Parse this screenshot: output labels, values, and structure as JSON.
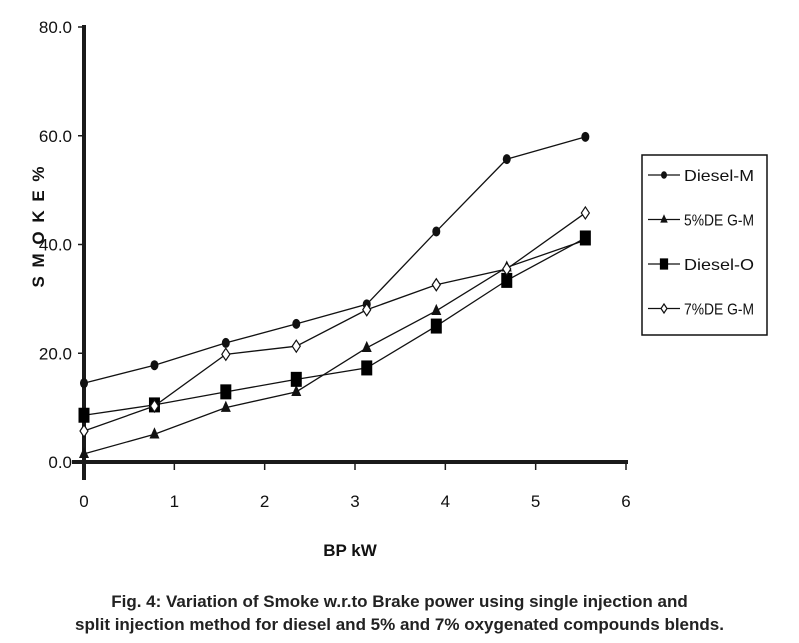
{
  "chart_data": {
    "type": "line",
    "title": "",
    "xlabel": "BP kW",
    "ylabel": "S M O K E %",
    "xlim": [
      0,
      6
    ],
    "ylim": [
      0,
      80
    ],
    "x_ticks": [
      "0",
      "1",
      "2",
      "3",
      "4",
      "5",
      "6"
    ],
    "y_ticks": [
      "0.0",
      "20.0",
      "40.0",
      "60.0",
      "80.0"
    ],
    "grid": false,
    "legend_position": "right",
    "x": [
      0,
      0.78,
      1.57,
      2.35,
      3.13,
      3.9,
      4.68,
      5.55
    ],
    "series": [
      {
        "name": "Diesel-M",
        "marker": "circle",
        "values": [
          14.5,
          17.8,
          21.9,
          25.4,
          29.0,
          42.4,
          55.7,
          59.8
        ]
      },
      {
        "name": "5%DE G-M",
        "marker": "triangle",
        "values": [
          1.5,
          5.1,
          10.0,
          12.9,
          21.0,
          27.8,
          35.8,
          40.8
        ]
      },
      {
        "name": "Diesel-O",
        "marker": "square",
        "values": [
          8.6,
          10.5,
          12.9,
          15.2,
          17.3,
          25.0,
          33.4,
          41.2
        ]
      },
      {
        "name": "7%DE G-M",
        "marker": "diamond-open",
        "values": [
          5.7,
          10.3,
          19.8,
          21.3,
          28.0,
          32.6,
          35.5,
          45.8
        ]
      }
    ]
  },
  "caption": {
    "line1": "Fig. 4: Variation of Smoke w.r.to Brake power using single injection and",
    "line2": "split injection method for diesel and 5% and 7% oxygenated compounds blends."
  }
}
